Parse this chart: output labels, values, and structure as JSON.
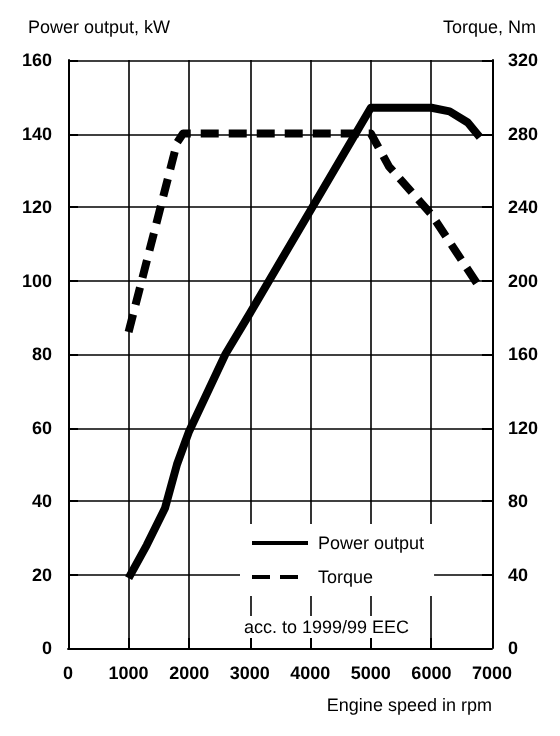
{
  "chart_data": {
    "type": "line",
    "ylabel": "Power output, kW",
    "y2label": "Torque, Nm",
    "xlabel": "Engine speed in rpm",
    "xlim": [
      0,
      7000
    ],
    "xticks": [
      0,
      1000,
      2000,
      3000,
      4000,
      5000,
      6000,
      7000
    ],
    "ylim": [
      0,
      160
    ],
    "yticks": [
      0,
      20,
      40,
      60,
      80,
      100,
      120,
      140,
      160
    ],
    "y2lim": [
      0,
      320
    ],
    "y2ticks": [
      0,
      40,
      80,
      120,
      160,
      200,
      240,
      280,
      320
    ],
    "grid": true,
    "legend": "bottom",
    "marker": "none",
    "annotations": [
      "acc. to 1999/99 EEC"
    ],
    "series": [
      {
        "name": "Power output",
        "color": "#000000",
        "line_style": "solid",
        "x": [
          1000,
          1300,
          1600,
          1800,
          2000,
          2600,
          3000,
          4000,
          5000,
          5100,
          6000,
          6300,
          6600,
          6800
        ],
        "values": [
          19,
          28,
          38,
          50,
          59,
          80,
          91,
          119,
          147,
          147,
          147,
          146,
          143,
          139
        ]
      },
      {
        "name": "Torque",
        "color": "#000000",
        "line_style": "dashed",
        "axis": "y2",
        "x": [
          1000,
          1800,
          1900,
          5000,
          5300,
          6000,
          6800
        ],
        "values": [
          172,
          275,
          280,
          280,
          262,
          236,
          196
        ]
      }
    ]
  }
}
